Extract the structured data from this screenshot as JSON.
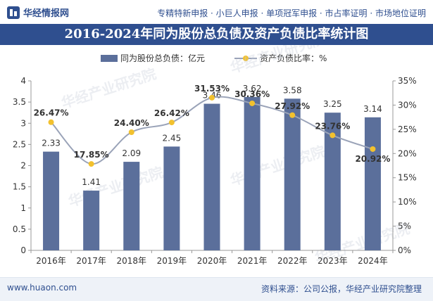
{
  "header": {
    "logo_text": "华经情报网",
    "services_text": "专精特新申报 · 小巨人申报 · 单项冠军申报 · 市占率证明 · 市场地位证明"
  },
  "footer": {
    "website": "www.huaon.com",
    "source": "资料来源：公司公报，华经产业研究院整理"
  },
  "watermark": "华经产业研究院",
  "colors": {
    "title_bar": "#2f4f8f",
    "bar_fill": "#5b6f9b",
    "line": "#9aa3b8",
    "marker": "#f2c12e",
    "text": "#333333"
  },
  "chart_data": {
    "type": "bar",
    "title": "2016-2024年同为股份总负债及资产负债比率统计图",
    "categories": [
      "2016年",
      "2017年",
      "2018年",
      "2019年",
      "2020年",
      "2021年",
      "2022年",
      "2023年",
      "2024年"
    ],
    "series": [
      {
        "name": "同为股份总负债：亿元",
        "type": "bar",
        "axis": "left",
        "values": [
          2.33,
          1.41,
          2.09,
          2.45,
          3.46,
          3.62,
          3.58,
          3.25,
          3.14
        ],
        "labels": [
          "2.33",
          "1.41",
          "2.09",
          "2.45",
          "3.46",
          "3.62",
          "3.58",
          "3.25",
          "3.14"
        ]
      },
      {
        "name": "资产负债比率：%",
        "type": "line",
        "axis": "right",
        "values": [
          26.47,
          17.85,
          24.4,
          26.42,
          31.53,
          30.36,
          27.92,
          23.76,
          20.92
        ],
        "labels": [
          "26.47%",
          "17.85%",
          "24.40%",
          "26.42%",
          "31.53%",
          "30.36%",
          "27.92%",
          "23.76%",
          "20.92%"
        ]
      }
    ],
    "y_left": {
      "min": 0,
      "max": 4,
      "ticks": [
        0,
        0.5,
        1,
        1.5,
        2,
        2.5,
        3,
        3.5,
        4
      ],
      "tick_labels": [
        "0",
        "0.5",
        "1",
        "1.5",
        "2",
        "2.5",
        "3",
        "3.5",
        "4"
      ]
    },
    "y_right": {
      "min": 0,
      "max": 35,
      "ticks": [
        0,
        5,
        10,
        15,
        20,
        25,
        30,
        35
      ],
      "tick_labels": [
        "0%",
        "5%",
        "10%",
        "15%",
        "20%",
        "25%",
        "30%",
        "35%"
      ]
    },
    "legend_position": "top-center",
    "grid": false
  }
}
